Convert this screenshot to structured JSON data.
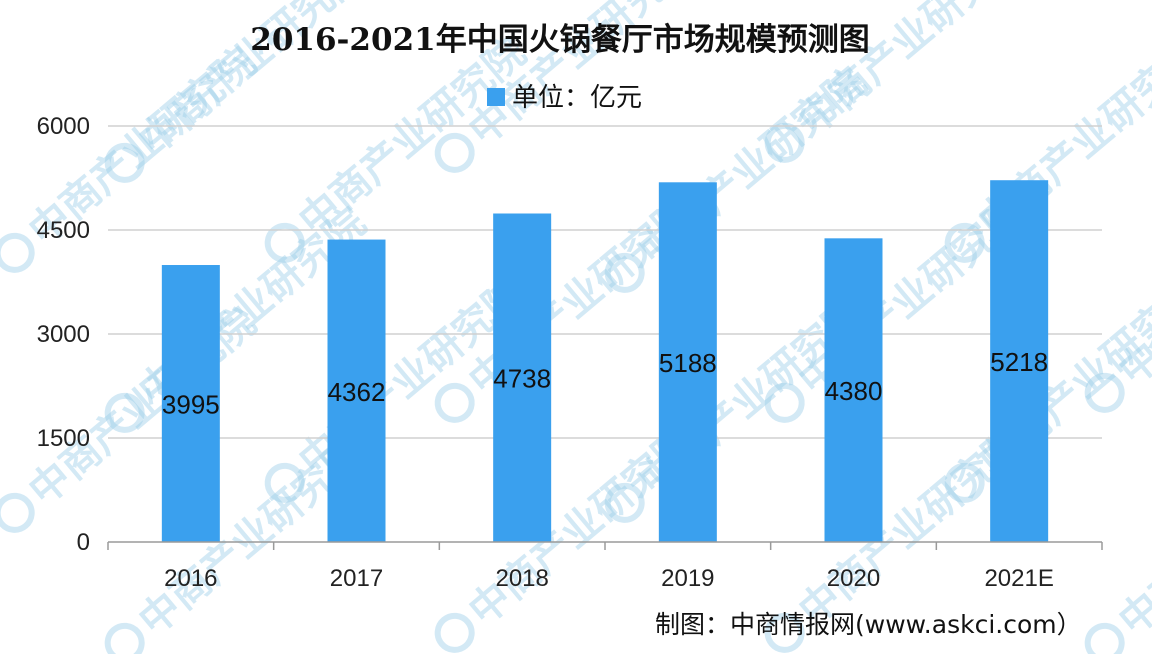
{
  "title": "2016-2021年中国火锅餐厅市场规模预测图",
  "source": "制图：中商情报网(www.askci.com）",
  "watermark": "中商产业研究院",
  "colors": {
    "bar": "#3aa0ee",
    "grid": "#d0d0d0",
    "axis": "#9a9a9a"
  },
  "chart_data": {
    "type": "bar",
    "categories": [
      "2016",
      "2017",
      "2018",
      "2019",
      "2020",
      "2021E"
    ],
    "series": [
      {
        "name": "单位：亿元",
        "values": [
          3995,
          4362,
          4738,
          5188,
          4380,
          5218
        ]
      }
    ],
    "data_labels": [
      "3995",
      "4362",
      "4738",
      "5188",
      "4380",
      "5218"
    ],
    "y_ticks": [
      "0",
      "1500",
      "3000",
      "4500",
      "6000"
    ],
    "y_tick_values": [
      0,
      1500,
      3000,
      4500,
      6000
    ],
    "ylim": [
      0,
      6000
    ],
    "grid": true,
    "legend_position": "top-center"
  }
}
